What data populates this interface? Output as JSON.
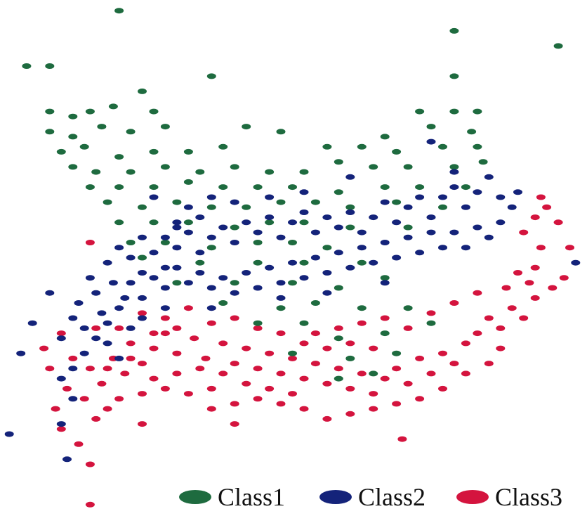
{
  "chart_data": {
    "type": "scatter",
    "title": "",
    "xlabel": "",
    "ylabel": "",
    "grid": false,
    "axes_visible": false,
    "legend_position": "bottom-right",
    "x_range": [
      0,
      100
    ],
    "y_range": [
      0,
      100
    ],
    "series": [
      {
        "name": "Class1",
        "color": "#1e6b3f",
        "points": [
          [
            20,
            99
          ],
          [
            78,
            95
          ],
          [
            4,
            88
          ],
          [
            8,
            88
          ],
          [
            96,
            92
          ],
          [
            36,
            86
          ],
          [
            78,
            86
          ],
          [
            8,
            79
          ],
          [
            12,
            78
          ],
          [
            15,
            79
          ],
          [
            19,
            80
          ],
          [
            24,
            83
          ],
          [
            26,
            79
          ],
          [
            72,
            79
          ],
          [
            78,
            79
          ],
          [
            82,
            79
          ],
          [
            8,
            75
          ],
          [
            12,
            74
          ],
          [
            17,
            76
          ],
          [
            22,
            75
          ],
          [
            28,
            76
          ],
          [
            42,
            76
          ],
          [
            48,
            75
          ],
          [
            66,
            74
          ],
          [
            74,
            76
          ],
          [
            81,
            75
          ],
          [
            10,
            71
          ],
          [
            14,
            72
          ],
          [
            20,
            70
          ],
          [
            26,
            71
          ],
          [
            32,
            71
          ],
          [
            38,
            72
          ],
          [
            56,
            72
          ],
          [
            62,
            72
          ],
          [
            68,
            71
          ],
          [
            76,
            72
          ],
          [
            82,
            72
          ],
          [
            12,
            68
          ],
          [
            16,
            67
          ],
          [
            22,
            67
          ],
          [
            28,
            68
          ],
          [
            34,
            67
          ],
          [
            40,
            68
          ],
          [
            46,
            67
          ],
          [
            52,
            67
          ],
          [
            58,
            69
          ],
          [
            64,
            68
          ],
          [
            70,
            68
          ],
          [
            78,
            68
          ],
          [
            83,
            69
          ],
          [
            15,
            64
          ],
          [
            20,
            64
          ],
          [
            26,
            64
          ],
          [
            32,
            65
          ],
          [
            38,
            64
          ],
          [
            44,
            64
          ],
          [
            50,
            64
          ],
          [
            58,
            63
          ],
          [
            66,
            64
          ],
          [
            72,
            64
          ],
          [
            80,
            64
          ],
          [
            18,
            61
          ],
          [
            24,
            60
          ],
          [
            30,
            61
          ],
          [
            36,
            60
          ],
          [
            42,
            60
          ],
          [
            48,
            61
          ],
          [
            54,
            61
          ],
          [
            60,
            60
          ],
          [
            68,
            61
          ],
          [
            76,
            60
          ],
          [
            20,
            57
          ],
          [
            26,
            57
          ],
          [
            32,
            57
          ],
          [
            40,
            56
          ],
          [
            46,
            57
          ],
          [
            52,
            57
          ],
          [
            60,
            56
          ],
          [
            70,
            56
          ],
          [
            22,
            53
          ],
          [
            28,
            53
          ],
          [
            36,
            52
          ],
          [
            44,
            53
          ],
          [
            50,
            53
          ],
          [
            56,
            52
          ],
          [
            24,
            50
          ],
          [
            34,
            49
          ],
          [
            44,
            49
          ],
          [
            52,
            49
          ],
          [
            62,
            49
          ],
          [
            30,
            45
          ],
          [
            40,
            45
          ],
          [
            50,
            45
          ],
          [
            58,
            44
          ],
          [
            66,
            46
          ],
          [
            38,
            41
          ],
          [
            48,
            40
          ],
          [
            54,
            41
          ],
          [
            62,
            40
          ],
          [
            70,
            40
          ],
          [
            44,
            37
          ],
          [
            52,
            37
          ],
          [
            58,
            34
          ],
          [
            66,
            35
          ],
          [
            74,
            37
          ],
          [
            50,
            31
          ],
          [
            60,
            30
          ],
          [
            68,
            31
          ],
          [
            58,
            26
          ],
          [
            64,
            27
          ]
        ]
      },
      {
        "name": "Class2",
        "color": "#14237a",
        "points": [
          [
            1,
            15
          ],
          [
            3,
            31
          ],
          [
            5,
            37
          ],
          [
            8,
            43
          ],
          [
            11,
            10
          ],
          [
            10,
            17
          ],
          [
            12,
            22
          ],
          [
            10,
            26
          ],
          [
            12,
            28
          ],
          [
            14,
            31
          ],
          [
            10,
            34
          ],
          [
            14,
            36
          ],
          [
            17,
            39
          ],
          [
            13,
            41
          ],
          [
            16,
            43
          ],
          [
            19,
            45
          ],
          [
            12,
            38
          ],
          [
            15,
            46
          ],
          [
            18,
            49
          ],
          [
            20,
            52
          ],
          [
            22,
            50
          ],
          [
            24,
            54
          ],
          [
            21,
            42
          ],
          [
            24,
            47
          ],
          [
            26,
            51
          ],
          [
            28,
            54
          ],
          [
            28,
            48
          ],
          [
            30,
            52
          ],
          [
            32,
            55
          ],
          [
            34,
            51
          ],
          [
            36,
            54
          ],
          [
            30,
            57
          ],
          [
            34,
            58
          ],
          [
            38,
            56
          ],
          [
            40,
            53
          ],
          [
            42,
            57
          ],
          [
            44,
            55
          ],
          [
            46,
            58
          ],
          [
            48,
            54
          ],
          [
            50,
            57
          ],
          [
            52,
            59
          ],
          [
            54,
            55
          ],
          [
            56,
            58
          ],
          [
            58,
            56
          ],
          [
            60,
            59
          ],
          [
            62,
            55
          ],
          [
            64,
            58
          ],
          [
            66,
            61
          ],
          [
            68,
            57
          ],
          [
            70,
            60
          ],
          [
            72,
            62
          ],
          [
            74,
            58
          ],
          [
            76,
            62
          ],
          [
            78,
            64
          ],
          [
            80,
            60
          ],
          [
            82,
            63
          ],
          [
            84,
            66
          ],
          [
            86,
            62
          ],
          [
            88,
            60
          ],
          [
            89,
            63
          ],
          [
            86,
            57
          ],
          [
            84,
            54
          ],
          [
            82,
            56
          ],
          [
            80,
            52
          ],
          [
            78,
            55
          ],
          [
            76,
            52
          ],
          [
            74,
            55
          ],
          [
            72,
            51
          ],
          [
            70,
            54
          ],
          [
            68,
            50
          ],
          [
            66,
            53
          ],
          [
            64,
            49
          ],
          [
            62,
            52
          ],
          [
            60,
            48
          ],
          [
            58,
            51
          ],
          [
            56,
            47
          ],
          [
            54,
            50
          ],
          [
            52,
            46
          ],
          [
            50,
            49
          ],
          [
            48,
            45
          ],
          [
            46,
            48
          ],
          [
            44,
            44
          ],
          [
            42,
            47
          ],
          [
            40,
            43
          ],
          [
            38,
            46
          ],
          [
            36,
            44
          ],
          [
            34,
            47
          ],
          [
            32,
            45
          ],
          [
            30,
            48
          ],
          [
            28,
            44
          ],
          [
            26,
            46
          ],
          [
            24,
            42
          ],
          [
            22,
            45
          ],
          [
            20,
            40
          ],
          [
            18,
            37
          ],
          [
            16,
            34
          ],
          [
            74,
            73
          ],
          [
            78,
            67
          ],
          [
            60,
            66
          ],
          [
            52,
            63
          ],
          [
            46,
            62
          ],
          [
            40,
            61
          ],
          [
            32,
            60
          ],
          [
            36,
            62
          ],
          [
            26,
            62
          ],
          [
            30,
            56
          ],
          [
            99,
            49
          ],
          [
            66,
            45
          ],
          [
            56,
            43
          ],
          [
            48,
            42
          ],
          [
            36,
            40
          ],
          [
            28,
            40
          ],
          [
            22,
            36
          ],
          [
            18,
            33
          ],
          [
            24,
            38
          ],
          [
            20,
            30
          ]
        ]
      },
      {
        "name": "Class3",
        "color": "#d4143e",
        "points": [
          [
            15,
            1
          ],
          [
            15,
            9
          ],
          [
            13,
            13
          ],
          [
            10,
            16
          ],
          [
            9,
            20
          ],
          [
            11,
            24
          ],
          [
            8,
            28
          ],
          [
            12,
            30
          ],
          [
            7,
            32
          ],
          [
            10,
            35
          ],
          [
            16,
            18
          ],
          [
            14,
            22
          ],
          [
            17,
            25
          ],
          [
            15,
            28
          ],
          [
            19,
            30
          ],
          [
            21,
            27
          ],
          [
            24,
            29
          ],
          [
            22,
            33
          ],
          [
            26,
            32
          ],
          [
            28,
            35
          ],
          [
            30,
            31
          ],
          [
            33,
            34
          ],
          [
            35,
            30
          ],
          [
            38,
            33
          ],
          [
            40,
            29
          ],
          [
            42,
            32
          ],
          [
            44,
            28
          ],
          [
            46,
            31
          ],
          [
            48,
            27
          ],
          [
            50,
            30
          ],
          [
            52,
            26
          ],
          [
            54,
            29
          ],
          [
            56,
            25
          ],
          [
            58,
            28
          ],
          [
            60,
            24
          ],
          [
            62,
            27
          ],
          [
            64,
            23
          ],
          [
            66,
            26
          ],
          [
            68,
            28
          ],
          [
            70,
            25
          ],
          [
            72,
            30
          ],
          [
            74,
            27
          ],
          [
            76,
            31
          ],
          [
            78,
            29
          ],
          [
            80,
            33
          ],
          [
            82,
            35
          ],
          [
            84,
            38
          ],
          [
            86,
            36
          ],
          [
            88,
            40
          ],
          [
            87,
            44
          ],
          [
            89,
            47
          ],
          [
            91,
            45
          ],
          [
            92,
            48
          ],
          [
            93,
            52
          ],
          [
            90,
            55
          ],
          [
            92,
            58
          ],
          [
            94,
            60
          ],
          [
            93,
            62
          ],
          [
            96,
            57
          ],
          [
            98,
            52
          ],
          [
            95,
            44
          ],
          [
            97,
            46
          ],
          [
            92,
            42
          ],
          [
            90,
            38
          ],
          [
            86,
            32
          ],
          [
            84,
            29
          ],
          [
            80,
            27
          ],
          [
            76,
            24
          ],
          [
            72,
            22
          ],
          [
            68,
            21
          ],
          [
            64,
            20
          ],
          [
            60,
            19
          ],
          [
            56,
            18
          ],
          [
            52,
            20
          ],
          [
            48,
            21
          ],
          [
            44,
            22
          ],
          [
            40,
            21
          ],
          [
            36,
            24
          ],
          [
            32,
            23
          ],
          [
            28,
            24
          ],
          [
            24,
            23
          ],
          [
            20,
            22
          ],
          [
            18,
            20
          ],
          [
            26,
            26
          ],
          [
            30,
            27
          ],
          [
            34,
            28
          ],
          [
            38,
            27
          ],
          [
            42,
            25
          ],
          [
            46,
            24
          ],
          [
            50,
            23
          ],
          [
            54,
            35
          ],
          [
            58,
            36
          ],
          [
            62,
            37
          ],
          [
            66,
            38
          ],
          [
            70,
            36
          ],
          [
            74,
            39
          ],
          [
            78,
            41
          ],
          [
            82,
            43
          ],
          [
            20,
            36
          ],
          [
            24,
            39
          ],
          [
            28,
            38
          ],
          [
            32,
            40
          ],
          [
            36,
            37
          ],
          [
            40,
            38
          ],
          [
            44,
            36
          ],
          [
            48,
            35
          ],
          [
            52,
            33
          ],
          [
            56,
            32
          ],
          [
            60,
            33
          ],
          [
            64,
            32
          ],
          [
            69,
            14
          ],
          [
            40,
            17
          ],
          [
            36,
            20
          ],
          [
            24,
            17
          ],
          [
            15,
            53
          ],
          [
            16,
            36
          ],
          [
            18,
            28
          ],
          [
            22,
            30
          ],
          [
            26,
            35
          ],
          [
            30,
            36
          ]
        ]
      }
    ]
  }
}
